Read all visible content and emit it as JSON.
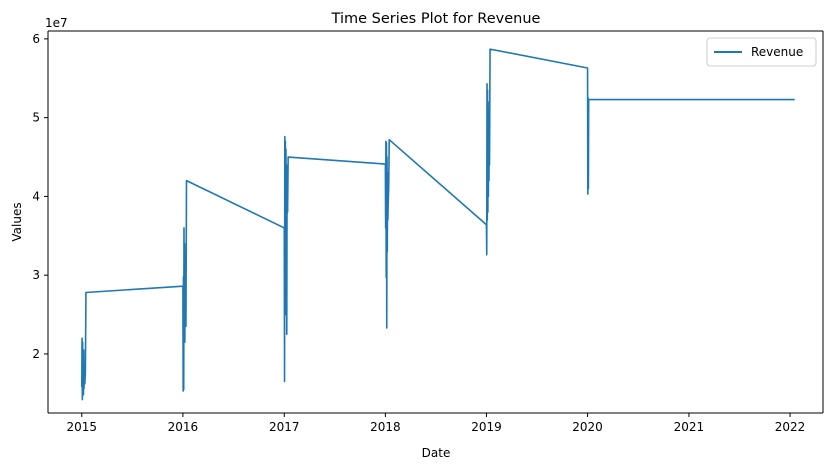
{
  "chart_data": {
    "type": "line",
    "title": "Time Series Plot for Revenue",
    "xlabel": "Date",
    "ylabel": "Values",
    "y_multiplier_label": "1e7",
    "y_multiplier": 10000000,
    "xlim": [
      "2014-09-01",
      "2022-04-30"
    ],
    "ylim": [
      12500000,
      61000000
    ],
    "x_ticks": [
      "2015-01-01",
      "2016-01-01",
      "2017-01-01",
      "2018-01-01",
      "2019-01-01",
      "2020-01-01",
      "2021-01-01",
      "2022-01-01"
    ],
    "x_tick_labels": [
      "2015",
      "2016",
      "2017",
      "2018",
      "2019",
      "2020",
      "2021",
      "2022"
    ],
    "y_ticks": [
      20000000,
      30000000,
      40000000,
      50000000,
      60000000
    ],
    "y_tick_labels": [
      "2",
      "3",
      "4",
      "5",
      "6"
    ],
    "grid": false,
    "legend": {
      "placement": "upper-right",
      "entries": [
        "Revenue"
      ]
    },
    "series": [
      {
        "name": "Revenue",
        "color": "#1f77b4",
        "x": [
          "2015-01-01",
          "2015-01-02",
          "2015-01-03",
          "2015-01-04",
          "2015-01-05",
          "2015-01-06",
          "2015-01-07",
          "2015-01-08",
          "2015-01-09",
          "2015-01-10",
          "2015-01-12",
          "2015-01-14",
          "2015-01-16",
          "2016-01-01",
          "2016-01-02",
          "2016-01-03",
          "2016-01-04",
          "2016-01-05",
          "2016-01-06",
          "2016-01-07",
          "2016-01-08",
          "2016-01-09",
          "2016-01-10",
          "2016-01-12",
          "2016-01-14",
          "2017-01-01",
          "2017-01-02",
          "2017-01-03",
          "2017-01-04",
          "2017-01-05",
          "2017-01-06",
          "2017-01-07",
          "2017-01-08",
          "2017-01-09",
          "2017-01-10",
          "2017-01-11",
          "2017-01-13",
          "2017-01-15",
          "2018-01-01",
          "2018-01-02",
          "2018-01-03",
          "2018-01-04",
          "2018-01-05",
          "2018-01-06",
          "2018-01-07",
          "2018-01-08",
          "2018-01-09",
          "2018-01-10",
          "2018-01-11",
          "2018-01-13",
          "2018-01-15",
          "2019-01-01",
          "2019-01-02",
          "2019-01-03",
          "2019-01-04",
          "2019-01-05",
          "2019-01-06",
          "2019-01-07",
          "2019-01-08",
          "2019-01-09",
          "2019-01-10",
          "2019-01-11",
          "2019-01-12",
          "2019-01-14",
          "2020-01-01",
          "2020-01-02",
          "2020-01-03",
          "2020-01-04",
          "2020-01-05",
          "2022-01-15"
        ],
        "y": [
          15900000,
          22000000,
          14200000,
          21500000,
          15200000,
          19800000,
          14800000,
          20500000,
          15600000,
          18500000,
          16200000,
          17800000,
          27800000,
          28600000,
          15300000,
          29800000,
          15500000,
          36000000,
          22000000,
          34000000,
          21500000,
          31000000,
          25000000,
          23500000,
          42000000,
          36000000,
          16500000,
          47600000,
          30500000,
          47000000,
          25000000,
          46000000,
          31000000,
          44000000,
          22500000,
          40000000,
          38000000,
          45000000,
          44100000,
          36000000,
          47000000,
          29700000,
          46800000,
          23300000,
          45000000,
          33000000,
          43000000,
          37000000,
          39000000,
          41000000,
          47200000,
          36400000,
          32600000,
          54300000,
          37000000,
          53500000,
          38000000,
          52000000,
          40000000,
          50000000,
          42000000,
          48000000,
          44000000,
          58700000,
          56300000,
          40300000,
          52500000,
          41000000,
          52300000,
          52300000
        ]
      }
    ]
  }
}
